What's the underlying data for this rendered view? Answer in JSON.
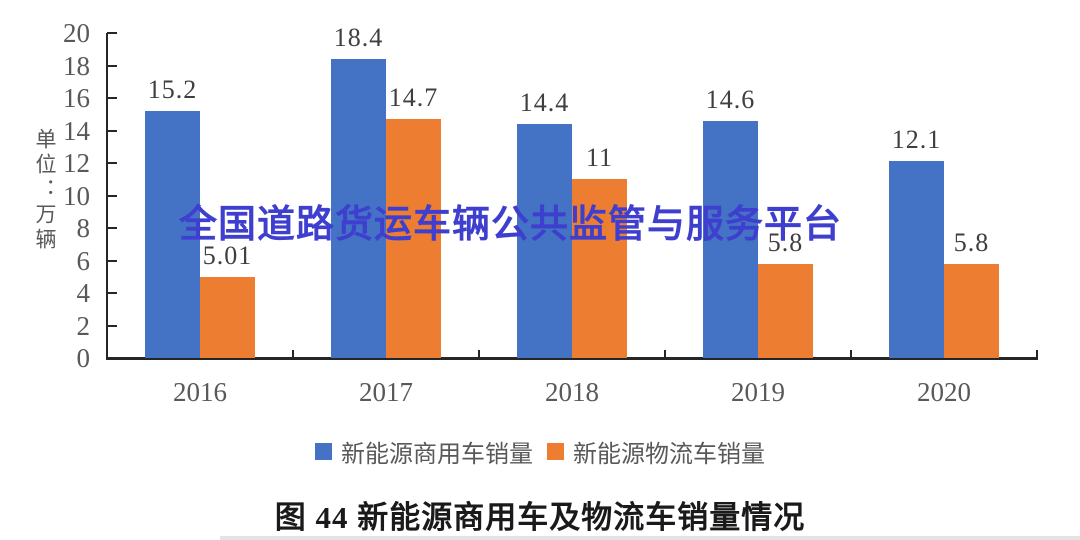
{
  "watermark": "全国道路货运车辆公共监管与服务平台",
  "caption": "图 44  新能源商用车及物流车销量情况",
  "colors": {
    "series_blue": "#4472C4",
    "series_orange": "#ED7D31",
    "axis": "#262626",
    "tick_text": "#595959",
    "value_label_text": "#3f3f3f",
    "watermark_blue": "#3e3ecf"
  },
  "chart_data": {
    "type": "bar",
    "title": "图 44  新能源商用车及物流车销量情况",
    "categories": [
      "2016",
      "2017",
      "2018",
      "2019",
      "2020"
    ],
    "series": [
      {
        "name": "新能源商用车销量",
        "color": "#4472C4",
        "values": [
          15.2,
          18.4,
          14.4,
          14.6,
          12.1
        ],
        "labels": [
          "15.2",
          "18.4",
          "14.4",
          "14.6",
          "12.1"
        ]
      },
      {
        "name": "新能源物流车销量",
        "color": "#ED7D31",
        "values": [
          5.01,
          14.7,
          11,
          5.8,
          5.8
        ],
        "labels": [
          "5.01",
          "14.7",
          "11",
          "5.8",
          "5.8"
        ]
      }
    ],
    "xlabel": "",
    "ylabel": "单位：万辆",
    "ylim": [
      0,
      20
    ],
    "ytick_step": 2,
    "grid": false,
    "legend_position": "bottom"
  }
}
